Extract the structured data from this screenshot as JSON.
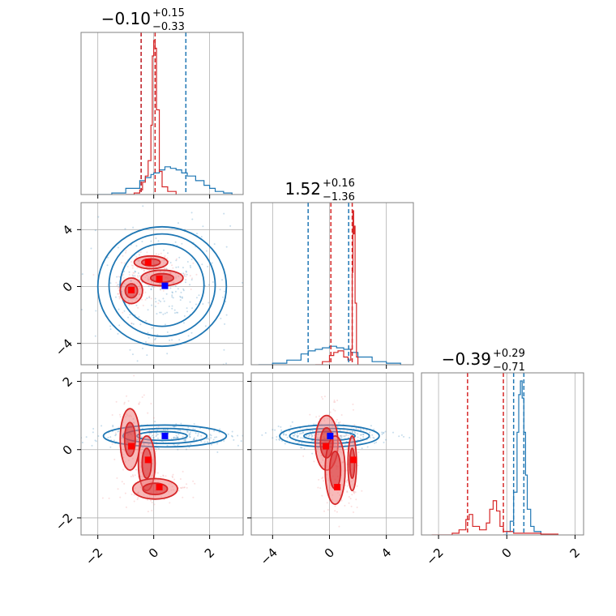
{
  "chart_data": {
    "type": "corner",
    "grid": true,
    "colors": {
      "blue": "#1f77b4",
      "red": "#d62728",
      "red_fill": "#f08080",
      "marker_blue": "#0000ff",
      "marker_red": "#ff0000",
      "grid": "#b0b0b0",
      "frame": "#808080"
    },
    "parameters": [
      {
        "range": [
          -2.6,
          3.2
        ],
        "ticks": [
          -2,
          0,
          2
        ],
        "tick_labels": [
          "−2",
          "0",
          "2"
        ]
      },
      {
        "range": [
          -5.5,
          5.9
        ],
        "ticks": [
          -4,
          0,
          4
        ],
        "tick_labels": [
          "−4",
          "0",
          "4"
        ]
      },
      {
        "range": [
          -2.5,
          2.25
        ],
        "ticks": [
          -2,
          0,
          2
        ],
        "tick_labels": [
          "−2",
          "0",
          "2"
        ]
      }
    ],
    "titles": [
      {
        "value": "−0.10",
        "plus": "+0.15",
        "minus": "−0.33"
      },
      {
        "value": "1.52",
        "plus": "+0.16",
        "minus": "−1.36"
      },
      {
        "value": "−0.39",
        "plus": "+0.29",
        "minus": "−0.71"
      }
    ],
    "quantile_lines": {
      "blue": [
        [
          -0.45,
          1.15
        ],
        [
          -1.5,
          1.35
        ],
        [
          0.2,
          0.5
        ]
      ],
      "red": [
        [
          -0.45,
          0.05
        ],
        [
          0.1,
          1.6
        ],
        [
          -1.15,
          -0.1
        ]
      ]
    },
    "histograms": {
      "blue": [
        {
          "x": [
            -2.0,
            -1.5,
            -1.0,
            -0.5,
            -0.3,
            -0.1,
            0.0,
            0.2,
            0.4,
            0.6,
            0.8,
            1.0,
            1.2,
            1.5,
            1.8,
            2.0,
            2.2,
            2.5,
            2.8
          ],
          "y": [
            0.0,
            0.01,
            0.04,
            0.09,
            0.11,
            0.13,
            0.14,
            0.16,
            0.18,
            0.17,
            0.16,
            0.14,
            0.12,
            0.09,
            0.06,
            0.04,
            0.02,
            0.01,
            0.0
          ]
        },
        {
          "x": [
            -5.0,
            -4.0,
            -3.0,
            -2.0,
            -1.5,
            -1.0,
            -0.5,
            0.0,
            0.5,
            1.0,
            1.5,
            2.0,
            3.0,
            4.0,
            5.0
          ],
          "y": [
            0.0,
            0.01,
            0.03,
            0.07,
            0.09,
            0.1,
            0.11,
            0.12,
            0.11,
            0.1,
            0.08,
            0.05,
            0.02,
            0.01,
            0.0
          ]
        },
        {
          "x": [
            -0.1,
            0.0,
            0.1,
            0.2,
            0.3,
            0.35,
            0.4,
            0.45,
            0.5,
            0.55,
            0.6,
            0.7,
            0.8,
            1.0
          ],
          "y": [
            0.0,
            0.02,
            0.08,
            0.25,
            0.6,
            0.82,
            0.9,
            0.8,
            0.6,
            0.35,
            0.15,
            0.05,
            0.02,
            0.0
          ]
        }
      ],
      "red": [
        {
          "x": [
            -1.0,
            -0.7,
            -0.5,
            -0.4,
            -0.3,
            -0.2,
            -0.1,
            -0.05,
            0.0,
            0.05,
            0.1,
            0.2,
            0.3,
            0.5,
            0.8
          ],
          "y": [
            0.0,
            0.01,
            0.03,
            0.08,
            0.12,
            0.22,
            0.45,
            0.9,
            1.0,
            0.95,
            0.55,
            0.15,
            0.05,
            0.02,
            0.0
          ]
        },
        {
          "x": [
            -1.0,
            -0.5,
            0.0,
            0.3,
            0.6,
            1.0,
            1.3,
            1.5,
            1.6,
            1.65,
            1.7,
            1.75,
            1.8,
            1.9,
            2.0
          ],
          "y": [
            0.0,
            0.02,
            0.06,
            0.08,
            0.09,
            0.05,
            0.03,
            0.1,
            0.6,
            1.0,
            0.85,
            0.9,
            0.4,
            0.05,
            0.0
          ]
        },
        {
          "x": [
            -2.2,
            -1.6,
            -1.4,
            -1.2,
            -1.1,
            -1.0,
            -0.8,
            -0.6,
            -0.5,
            -0.4,
            -0.3,
            -0.2,
            -0.1,
            0.0,
            0.2,
            0.5,
            1.0,
            1.5
          ],
          "y": [
            0.0,
            0.01,
            0.03,
            0.09,
            0.12,
            0.05,
            0.03,
            0.07,
            0.15,
            0.2,
            0.14,
            0.05,
            0.02,
            0.02,
            0.01,
            0.01,
            0.005,
            0.0
          ]
        }
      ]
    },
    "markers": {
      "blue": [
        0.4,
        0.05,
        0.4
      ],
      "red": [
        [
          -0.8,
          -0.25,
          0.1
        ],
        [
          0.2,
          0.55,
          -1.1
        ],
        [
          -0.2,
          1.7,
          -0.3
        ]
      ]
    },
    "contours_2d": {
      "blue": {
        "1,0": [
          {
            "cx": 0.3,
            "cy": 0.1,
            "rx": 1.5,
            "ry": 2.9
          },
          {
            "cx": 0.3,
            "cy": 0.1,
            "rx": 1.9,
            "ry": 3.6
          },
          {
            "cx": 0.3,
            "cy": 0.0,
            "rx": 2.3,
            "ry": 4.2
          }
        ],
        "2,0": [
          {
            "cx": 0.3,
            "cy": 0.4,
            "rx": 0.9,
            "ry": 0.13
          },
          {
            "cx": 0.4,
            "cy": 0.4,
            "rx": 1.5,
            "ry": 0.22
          },
          {
            "cx": 0.4,
            "cy": 0.4,
            "rx": 2.2,
            "ry": 0.32
          }
        ],
        "2,1": [
          {
            "cx": 0.0,
            "cy": 0.4,
            "rx": 1.8,
            "ry": 0.13
          },
          {
            "cx": 0.0,
            "cy": 0.4,
            "rx": 2.8,
            "ry": 0.22
          },
          {
            "cx": 0.0,
            "cy": 0.4,
            "rx": 3.5,
            "ry": 0.32
          }
        ]
      },
      "red": {
        "1,0": [
          {
            "cx": -0.1,
            "cy": 1.7,
            "rx": 0.6,
            "ry": 0.45
          },
          {
            "cx": 0.3,
            "cy": 0.6,
            "rx": 0.75,
            "ry": 0.55
          },
          {
            "cx": -0.8,
            "cy": -0.3,
            "rx": 0.4,
            "ry": 0.9
          }
        ],
        "2,0": [
          {
            "cx": -0.85,
            "cy": 0.3,
            "rx": 0.35,
            "ry": 0.9
          },
          {
            "cx": -0.25,
            "cy": -0.4,
            "rx": 0.3,
            "ry": 0.8
          },
          {
            "cx": 0.05,
            "cy": -1.15,
            "rx": 0.8,
            "ry": 0.3
          }
        ],
        "2,1": [
          {
            "cx": -0.2,
            "cy": 0.2,
            "rx": 0.8,
            "ry": 0.8
          },
          {
            "cx": 0.4,
            "cy": -0.6,
            "rx": 0.7,
            "ry": 1.0
          },
          {
            "cx": 1.6,
            "cy": -0.4,
            "rx": 0.3,
            "ry": 0.8
          }
        ]
      }
    }
  }
}
